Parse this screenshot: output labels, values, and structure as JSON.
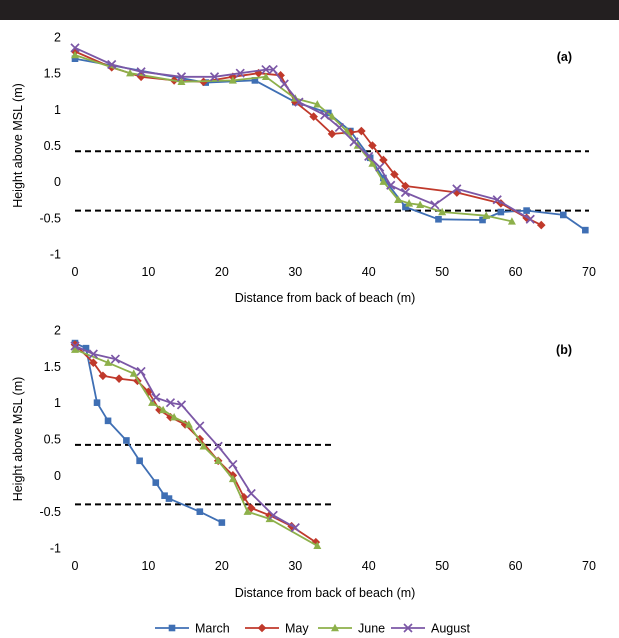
{
  "colors": {
    "March": "#3f6fb4",
    "May": "#c0392b",
    "June": "#8db04a",
    "August": "#7b57a6",
    "threshold": "#000000",
    "topbar": "#231f20"
  },
  "legend": [
    "March",
    "May",
    "June",
    "August"
  ],
  "chart_data": [
    {
      "type": "line",
      "panel_label": "(a)",
      "xlabel": "Distance from back of beach (m)",
      "ylabel": "Height above MSL (m)",
      "xlim": [
        0,
        70
      ],
      "ylim": [
        -1,
        2
      ],
      "xticks": [
        0,
        10,
        20,
        30,
        40,
        50,
        60,
        70
      ],
      "yticks": [
        -1,
        -0.5,
        0,
        0.5,
        1,
        1.5,
        2
      ],
      "grid": false,
      "thresholds": [
        {
          "y": 0.42,
          "x": [
            0,
            70
          ]
        },
        {
          "y": -0.4,
          "x": [
            0,
            70
          ]
        }
      ],
      "series": [
        {
          "name": "March",
          "marker": "square",
          "x": [
            0,
            17.8,
            24.5,
            30,
            34.5,
            37.5,
            40.2,
            42,
            45,
            49.5,
            55.5,
            58,
            61.5,
            66.5,
            69.5
          ],
          "y": [
            1.7,
            1.37,
            1.4,
            1.1,
            0.95,
            0.7,
            0.33,
            0.05,
            -0.35,
            -0.52,
            -0.53,
            -0.42,
            -0.4,
            -0.46,
            -0.67
          ]
        },
        {
          "name": "May",
          "marker": "diamond",
          "x": [
            0,
            5,
            9,
            13.5,
            17.5,
            21.5,
            25,
            28,
            30,
            32.5,
            35,
            37.5,
            39,
            40.5,
            42,
            43.5,
            45,
            52,
            58,
            61.5,
            63.5
          ],
          "y": [
            1.8,
            1.58,
            1.45,
            1.4,
            1.38,
            1.45,
            1.5,
            1.47,
            1.1,
            0.9,
            0.66,
            0.68,
            0.7,
            0.5,
            0.3,
            0.1,
            -0.06,
            -0.15,
            -0.3,
            -0.5,
            -0.6
          ]
        },
        {
          "name": "June",
          "marker": "triangle",
          "x": [
            0,
            7.5,
            14.5,
            21.5,
            26,
            30,
            33,
            35,
            37,
            38.5,
            40.5,
            42,
            44,
            45.5,
            47,
            50,
            56,
            59.5
          ],
          "y": [
            1.75,
            1.5,
            1.38,
            1.4,
            1.45,
            1.15,
            1.07,
            0.9,
            0.7,
            0.5,
            0.25,
            0,
            -0.25,
            -0.3,
            -0.32,
            -0.42,
            -0.47,
            -0.55
          ]
        },
        {
          "name": "August",
          "marker": "cross",
          "x": [
            0,
            5,
            9,
            14.5,
            19,
            22.5,
            26,
            27,
            28.5,
            30.5,
            34,
            36,
            38,
            40,
            41.5,
            43,
            45,
            49,
            52,
            57.5,
            62
          ],
          "y": [
            1.85,
            1.62,
            1.52,
            1.45,
            1.45,
            1.5,
            1.55,
            1.55,
            1.35,
            1.1,
            0.92,
            0.75,
            0.55,
            0.35,
            0.2,
            -0.05,
            -0.15,
            -0.32,
            -0.1,
            -0.25,
            -0.52
          ]
        }
      ]
    },
    {
      "type": "line",
      "panel_label": "(b)",
      "xlabel": "Distance from back of beach (m)",
      "ylabel": "Height above MSL (m)",
      "xlim": [
        0,
        70
      ],
      "ylim": [
        -1,
        2
      ],
      "xticks": [
        0,
        10,
        20,
        30,
        40,
        50,
        60,
        70
      ],
      "yticks": [
        -1,
        -0.5,
        0,
        0.5,
        1,
        1.5,
        2
      ],
      "grid": false,
      "thresholds": [
        {
          "y": 0.42,
          "x": [
            0,
            35
          ]
        },
        {
          "y": -0.4,
          "x": [
            0,
            35
          ]
        }
      ],
      "series": [
        {
          "name": "March",
          "marker": "square",
          "x": [
            0,
            1.5,
            3,
            4.5,
            7,
            8.8,
            11,
            12.2,
            12.8,
            17,
            20
          ],
          "y": [
            1.82,
            1.75,
            1.0,
            0.75,
            0.48,
            0.2,
            -0.1,
            -0.28,
            -0.32,
            -0.5,
            -0.65
          ]
        },
        {
          "name": "May",
          "marker": "diamond",
          "x": [
            0,
            2.5,
            3.8,
            6,
            8.5,
            10,
            11.5,
            13,
            15,
            17,
            19.5,
            21.5,
            23,
            24,
            26.5,
            29.5,
            32.8
          ],
          "y": [
            1.8,
            1.55,
            1.37,
            1.33,
            1.3,
            1.15,
            0.9,
            0.8,
            0.7,
            0.5,
            0.2,
            0,
            -0.3,
            -0.45,
            -0.55,
            -0.7,
            -0.92
          ]
        },
        {
          "name": "June",
          "marker": "triangle",
          "x": [
            0,
            4.5,
            8,
            10.5,
            12,
            13.5,
            15.5,
            17.5,
            19.5,
            21.5,
            23.5,
            26.5,
            33
          ],
          "y": [
            1.73,
            1.55,
            1.4,
            1.0,
            0.9,
            0.8,
            0.7,
            0.4,
            0.2,
            -0.05,
            -0.5,
            -0.6,
            -0.97
          ]
        },
        {
          "name": "August",
          "marker": "cross",
          "x": [
            0,
            2.5,
            5.5,
            9,
            11,
            13,
            14.5,
            17,
            19.5,
            21.5,
            24,
            27,
            30
          ],
          "y": [
            1.78,
            1.67,
            1.6,
            1.43,
            1.07,
            1.0,
            0.97,
            0.68,
            0.4,
            0.15,
            -0.25,
            -0.55,
            -0.72
          ]
        }
      ]
    }
  ]
}
